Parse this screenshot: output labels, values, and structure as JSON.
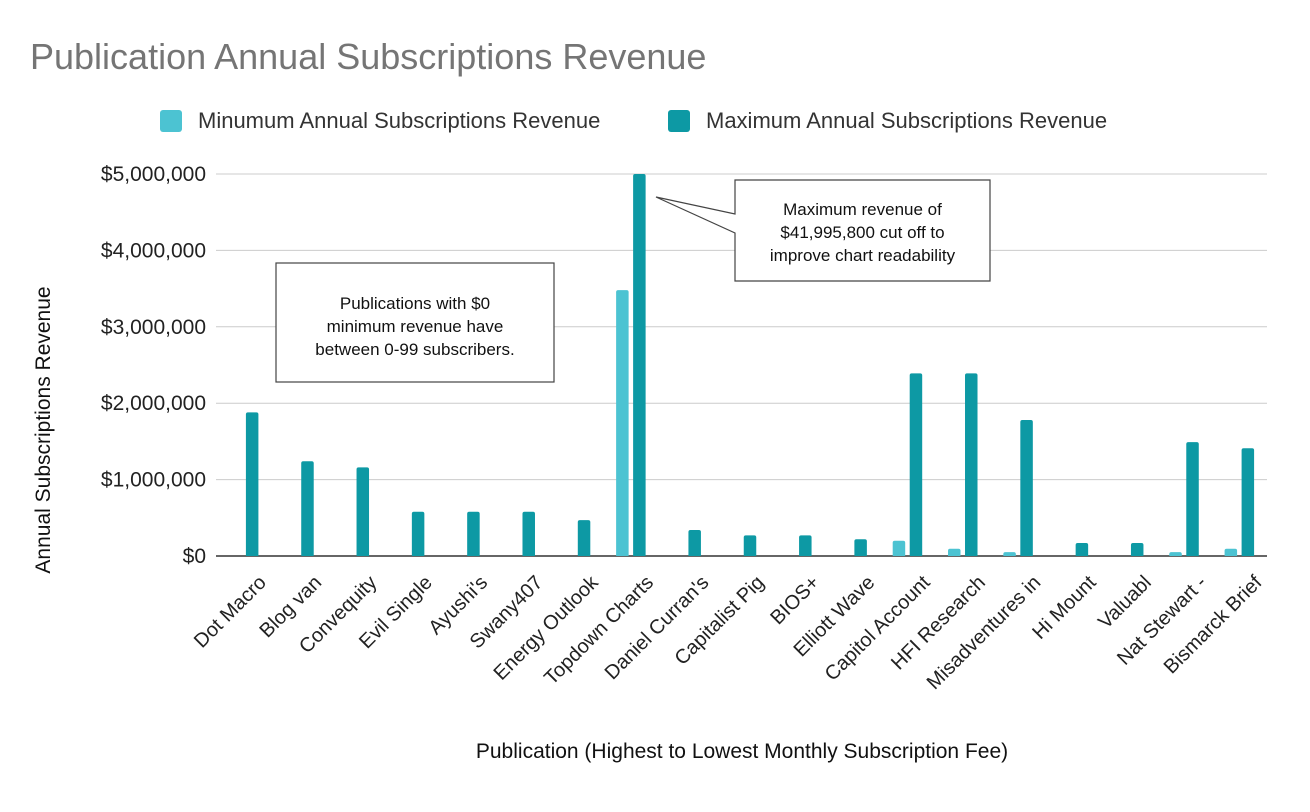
{
  "chart_data": {
    "type": "bar",
    "title": "Publication Annual Subscriptions Revenue",
    "xlabel": "Publication (Highest to Lowest Monthly Subscription Fee)",
    "ylabel": "Annual Subscriptions Revenue",
    "ylim": [
      0,
      5000000
    ],
    "yticks": [
      0,
      1000000,
      2000000,
      3000000,
      4000000,
      5000000
    ],
    "ytick_labels": [
      "$0",
      "$1,000,000",
      "$2,000,000",
      "$3,000,000",
      "$4,000,000",
      "$5,000,000"
    ],
    "grid": true,
    "legend_position": "top",
    "categories": [
      "Dot Macro",
      "Blog van",
      "Convequity",
      "Evil Single",
      "Ayushi's",
      "Swany407",
      "Energy Outlook",
      "Topdown Charts",
      "Daniel Curran's",
      "Capitalist Pig",
      "BIOS+",
      "Elliott Wave",
      "Capitol Account",
      "HFI Research",
      "Misadventures in",
      "Hi Mount",
      "Valuabl",
      "Nat Stewart -",
      "Bismarck Brief"
    ],
    "series": [
      {
        "name": "Minumum Annual Subscriptions Revenue",
        "color": "#4cc3d2",
        "values": [
          0,
          0,
          0,
          0,
          0,
          0,
          0,
          3480000,
          0,
          0,
          0,
          0,
          200000,
          95000,
          50000,
          0,
          0,
          50000,
          95000
        ]
      },
      {
        "name": "Maximum Annual Subscriptions Revenue",
        "color": "#0d99a4",
        "values": [
          1880000,
          1240000,
          1160000,
          580000,
          580000,
          580000,
          470000,
          5000000,
          340000,
          270000,
          270000,
          220000,
          2390000,
          2390000,
          1780000,
          170000,
          170000,
          1490000,
          1410000
        ]
      }
    ],
    "annotations": [
      "Publications with $0 minimum revenue have between 0-99 subscribers.",
      "Maximum revenue of $41,995,800 cut off to improve chart readability"
    ]
  },
  "annotations": {
    "zero_min_lines": [
      "Publications with $0",
      "minimum revenue have",
      "between 0-99 subscribers."
    ],
    "cutoff_lines": [
      "Maximum revenue of",
      "$41,995,800 cut off to",
      "improve chart readability"
    ]
  }
}
